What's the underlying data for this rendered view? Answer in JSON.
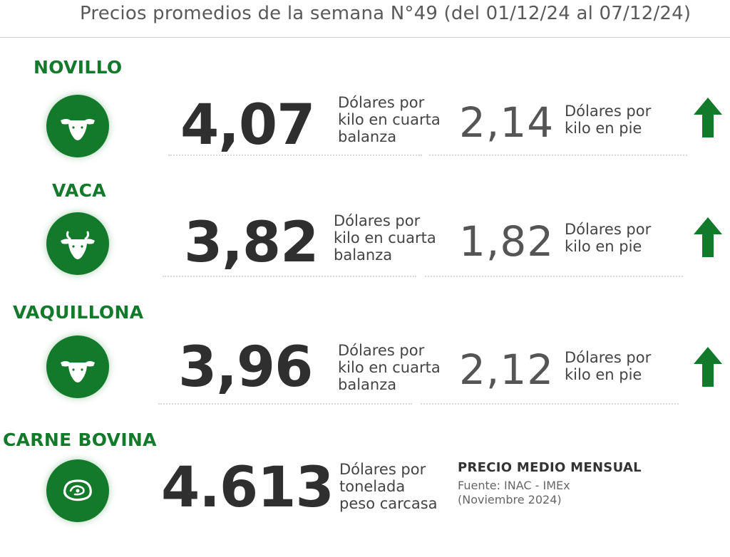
{
  "header": {
    "title": "Precios promedios de la semana N°49 (del 01/12/24 al 07/12/24)"
  },
  "colors": {
    "brand_green": "#137a2b",
    "text_dark": "#2f2f2f",
    "text_gray": "#555555"
  },
  "rows": [
    {
      "label": "NOVILLO",
      "icon": "bull-head-icon",
      "price": "4,07",
      "price_unit": [
        "Dólares por",
        "kilo en cuarta",
        "balanza"
      ],
      "live_price": "2,14",
      "live_unit": [
        "Dólares por",
        "kilo en pie"
      ],
      "trend": "up-arrow-icon"
    },
    {
      "label": "VACA",
      "icon": "cow-head-icon",
      "price": "3,82",
      "price_unit": [
        "Dólares por",
        "kilo en cuarta",
        "balanza"
      ],
      "live_price": "1,82",
      "live_unit": [
        "Dólares por",
        "kilo en pie"
      ],
      "trend": "up-arrow-icon"
    },
    {
      "label": "VAQUILLONA",
      "icon": "heifer-head-icon",
      "price": "3,96",
      "price_unit": [
        "Dólares por",
        "kilo en cuarta",
        "balanza"
      ],
      "live_price": "2,12",
      "live_unit": [
        "Dólares por",
        "kilo en pie"
      ],
      "trend": "up-arrow-icon"
    }
  ],
  "beef": {
    "label": "CARNE BOVINA",
    "icon": "steak-icon",
    "price": "4.613",
    "price_unit": [
      "Dólares por",
      "tonelada",
      "peso carcasa"
    ],
    "monthly_title": "PRECIO MEDIO MENSUAL",
    "source": [
      "Fuente: INAC - IMEx",
      "(Noviembre 2024)"
    ]
  }
}
